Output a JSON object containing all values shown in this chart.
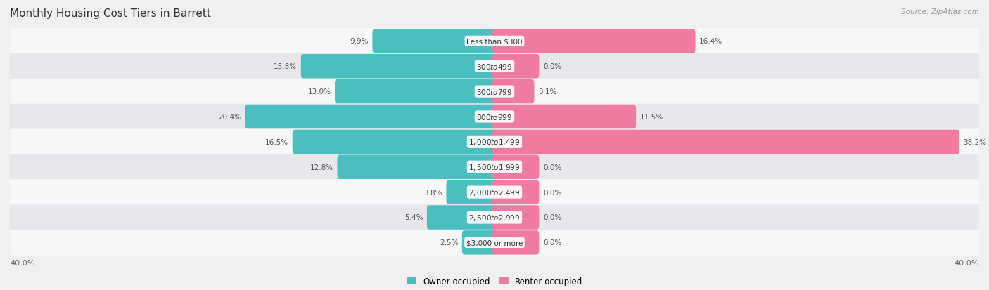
{
  "title": "Monthly Housing Cost Tiers in Barrett",
  "source": "Source: ZipAtlas.com",
  "categories": [
    "Less than $300",
    "$300 to $499",
    "$500 to $799",
    "$800 to $999",
    "$1,000 to $1,499",
    "$1,500 to $1,999",
    "$2,000 to $2,499",
    "$2,500 to $2,999",
    "$3,000 or more"
  ],
  "owner_values": [
    9.9,
    15.8,
    13.0,
    20.4,
    16.5,
    12.8,
    3.8,
    5.4,
    2.5
  ],
  "renter_values": [
    16.4,
    0.0,
    3.1,
    11.5,
    38.2,
    0.0,
    0.0,
    0.0,
    0.0
  ],
  "owner_color": "#4BBFBF",
  "renter_color": "#F07BA0",
  "axis_limit": 40.0,
  "background_color": "#f0f0f0",
  "row_bg_color_light": "#f7f7f7",
  "row_bg_color_dark": "#e8e8ec",
  "title_fontsize": 11,
  "label_fontsize": 7.5,
  "value_fontsize": 7.5,
  "legend_fontsize": 8.5,
  "axis_label_fontsize": 8
}
